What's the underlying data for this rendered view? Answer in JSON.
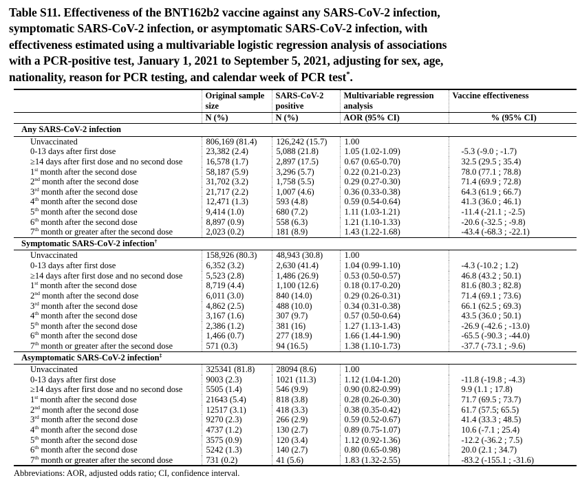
{
  "title": {
    "lines": [
      "Table S11. Effectiveness of the BNT162b2 vaccine against any SARS-CoV-2 infection,",
      "symptomatic SARS-CoV-2 infection, or asymptomatic SARS-CoV-2 infection, with",
      "effectiveness estimated using a multivariable logistic regression analysis of associations",
      "with a PCR-positive test, January 1, 2021 to September 5, 2021, adjusting for sex, age,"
    ],
    "last": {
      "pre": "nationality, reason for PCR testing, and calendar week of PCR test",
      "sup": "*",
      "post": "."
    }
  },
  "table": {
    "columns": [
      {
        "title": "Original sample size",
        "sub": "N (%)"
      },
      {
        "title": "SARS-CoV-2 positive",
        "sub": "N (%)"
      },
      {
        "title": "Multivariable regression analysis",
        "sub": "AOR (95% CI)"
      },
      {
        "title": "Vaccine effectiveness",
        "sub": "% (95% CI)"
      }
    ],
    "sections": [
      {
        "label": {
          "text": "Any SARS-CoV-2 infection",
          "sup": ""
        },
        "rows": [
          {
            "label": {
              "pre": "Unvaccinated",
              "sup": "",
              "post": ""
            },
            "original": "806,169 (81.4)",
            "positive": "126,242 (15.7)",
            "aor": "1.00",
            "ve": ""
          },
          {
            "label": {
              "pre": "0-13 days after first dose",
              "sup": "",
              "post": ""
            },
            "original": "23,382 (2.4)",
            "positive": "5,088 (21.8)",
            "aor": "1.05 (1.02-1.09)",
            "ve": "-5.3 (-9.0 ; -1.7)"
          },
          {
            "label": {
              "pre": "≥14 days after first dose and no second dose",
              "sup": "",
              "post": ""
            },
            "original": "16,578 (1.7)",
            "positive": "2,897 (17.5)",
            "aor": "0.67 (0.65-0.70)",
            "ve": "32.5 (29.5 ; 35.4)"
          },
          {
            "label": {
              "pre": "1",
              "sup": "st",
              "post": " month after the second dose"
            },
            "original": "58,187 (5.9)",
            "positive": "3,296 (5.7)",
            "aor": "0.22 (0.21-0.23)",
            "ve": "78.0 (77.1 ; 78.8)"
          },
          {
            "label": {
              "pre": "2",
              "sup": "nd",
              "post": " month after the second dose"
            },
            "original": "31,702 (3.2)",
            "positive": "1,758 (5.5)",
            "aor": "0.29 (0.27-0.30)",
            "ve": "71.4 (69.9 ; 72.8)"
          },
          {
            "label": {
              "pre": "3",
              "sup": "rd",
              "post": " month after the second dose"
            },
            "original": "21,717 (2.2)",
            "positive": "1,007 (4.6)",
            "aor": "0.36 (0.33-0.38)",
            "ve": "64.3 (61.9 ; 66.7)"
          },
          {
            "label": {
              "pre": "4",
              "sup": "th",
              "post": " month after the second dose"
            },
            "original": "12,471 (1.3)",
            "positive": "593 (4.8)",
            "aor": "0.59 (0.54-0.64)",
            "ve": "41.3 (36.0 ; 46.1)"
          },
          {
            "label": {
              "pre": "5",
              "sup": "th",
              "post": " month after the second dose"
            },
            "original": "9,414 (1.0)",
            "positive": "680 (7.2)",
            "aor": "1.11 (1.03-1.21)",
            "ve": "-11.4 (-21.1 ; -2.5)"
          },
          {
            "label": {
              "pre": "6",
              "sup": "th",
              "post": " month after the second dose"
            },
            "original": "8,897 (0.9)",
            "positive": "558 (6.3)",
            "aor": "1.21 (1.10-1.33)",
            "ve": "-20.6 (-32.5 ; -9.8)"
          },
          {
            "label": {
              "pre": "7",
              "sup": "th",
              "post": " month or greater after the second dose"
            },
            "original": "2,023 (0.2)",
            "positive": "181 (8.9)",
            "aor": "1.43 (1.22-1.68)",
            "ve": "-43.4 (-68.3 ; -22.1)"
          }
        ]
      },
      {
        "label": {
          "text": "Symptomatic SARS-CoV-2 infection",
          "sup": "†"
        },
        "rows": [
          {
            "label": {
              "pre": "Unvaccinated",
              "sup": "",
              "post": ""
            },
            "original": "158,926 (80.3)",
            "positive": "48,943 (30.8)",
            "aor": "1.00",
            "ve": ""
          },
          {
            "label": {
              "pre": "0-13 days after first dose",
              "sup": "",
              "post": ""
            },
            "original": "6,352 (3.2)",
            "positive": "2,630 (41.4)",
            "aor": "1.04 (0.99-1.10)",
            "ve": "-4.3 (-10.2 ; 1.2)"
          },
          {
            "label": {
              "pre": "≥14 days after first dose and no second dose",
              "sup": "",
              "post": ""
            },
            "original": "5,523 (2.8)",
            "positive": "1,486 (26.9)",
            "aor": "0.53 (0.50-0.57)",
            "ve": "46.8 (43.2 ; 50.1)"
          },
          {
            "label": {
              "pre": "1",
              "sup": "st",
              "post": " month after the second dose"
            },
            "original": "8,719 (4.4)",
            "positive": "1,100 (12.6)",
            "aor": "0.18 (0.17-0.20)",
            "ve": "81.6 (80.3 ; 82.8)"
          },
          {
            "label": {
              "pre": "2",
              "sup": "nd",
              "post": " month after the second dose"
            },
            "original": "6,011 (3.0)",
            "positive": "840 (14.0)",
            "aor": "0.29 (0.26-0.31)",
            "ve": "71.4 (69.1 ; 73.6)"
          },
          {
            "label": {
              "pre": "3",
              "sup": "rd",
              "post": " month after the second dose"
            },
            "original": "4,862 (2.5)",
            "positive": "488 (10.0)",
            "aor": "0.34 (0.31-0.38)",
            "ve": "66.1 (62.5 ; 69.3)"
          },
          {
            "label": {
              "pre": "4",
              "sup": "th",
              "post": " month after the second dose"
            },
            "original": "3,167 (1.6)",
            "positive": "307 (9.7)",
            "aor": "0.57 (0.50-0.64)",
            "ve": "43.5 (36.0 ; 50.1)"
          },
          {
            "label": {
              "pre": "5",
              "sup": "th",
              "post": " month after the second dose"
            },
            "original": "2,386 (1.2)",
            "positive": "381 (16)",
            "aor": "1.27 (1.13-1.43)",
            "ve": "-26.9 (-42.6 ; -13.0)"
          },
          {
            "label": {
              "pre": "6",
              "sup": "th",
              "post": " month after the second dose"
            },
            "original": "1,466 (0.7)",
            "positive": "277 (18.9)",
            "aor": "1.66 (1.44-1.90)",
            "ve": "-65.5 (-90.3 ; -44.0)"
          },
          {
            "label": {
              "pre": "7",
              "sup": "th",
              "post": " month or greater after the second dose"
            },
            "original": "571 (0.3)",
            "positive": "94 (16.5)",
            "aor": "1.38 (1.10-1.73)",
            "ve": "-37.7 (-73.1 ; -9.6)"
          }
        ]
      },
      {
        "label": {
          "text": "Asymptomatic SARS-CoV-2 infection",
          "sup": "‡"
        },
        "rows": [
          {
            "label": {
              "pre": "Unvaccinated",
              "sup": "",
              "post": ""
            },
            "original": "325341 (81.8)",
            "positive": "28094 (8.6)",
            "aor": "1.00",
            "ve": ""
          },
          {
            "label": {
              "pre": "0-13 days after first dose",
              "sup": "",
              "post": ""
            },
            "original": "9003 (2.3)",
            "positive": "1021 (11.3)",
            "aor": "1.12 (1.04-1.20)",
            "ve": "-11.8 (-19.8 ; -4.3)"
          },
          {
            "label": {
              "pre": "≥14 days after first dose and no second dose",
              "sup": "",
              "post": ""
            },
            "original": "5505 (1.4)",
            "positive": "546 (9.9)",
            "aor": "0.90 (0.82-0.99)",
            "ve": "9.9 (1.1 ; 17.8)"
          },
          {
            "label": {
              "pre": "1",
              "sup": "st",
              "post": " month after the second dose"
            },
            "original": "21643 (5.4)",
            "positive": "818 (3.8)",
            "aor": "0.28 (0.26-0.30)",
            "ve": "71.7 (69.5 ; 73.7)"
          },
          {
            "label": {
              "pre": "2",
              "sup": "nd",
              "post": " month after the second dose"
            },
            "original": "12517 (3.1)",
            "positive": "418 (3.3)",
            "aor": "0.38 (0.35-0.42)",
            "ve": "61.7 (57.5; 65.5)"
          },
          {
            "label": {
              "pre": "3",
              "sup": "rd",
              "post": " month after the second dose"
            },
            "original": "9270 (2.3)",
            "positive": "266 (2.9)",
            "aor": "0.59 (0.52-0.67)",
            "ve": "41.4 (33.3 ; 48.5)"
          },
          {
            "label": {
              "pre": "4",
              "sup": "th",
              "post": " month after the second dose"
            },
            "original": "4737 (1.2)",
            "positive": "130 (2.7)",
            "aor": "0.89 (0.75-1.07)",
            "ve": "10.6 (-7.1 ; 25.4)"
          },
          {
            "label": {
              "pre": "5",
              "sup": "th",
              "post": " month after the second dose"
            },
            "original": "3575 (0.9)",
            "positive": "120 (3.4)",
            "aor": "1.12 (0.92-1.36)",
            "ve": "-12.2 (-36.2 ; 7.5)"
          },
          {
            "label": {
              "pre": "6",
              "sup": "th",
              "post": " month after the second dose"
            },
            "original": "5242 (1.3)",
            "positive": "140 (2.7)",
            "aor": "0.80 (0.65-0.98)",
            "ve": "20.0 (2.1 ; 34.7)"
          },
          {
            "label": {
              "pre": "7",
              "sup": "th",
              "post": " month or greater after the second dose"
            },
            "original": "731 (0.2)",
            "positive": "41 (5.6)",
            "aor": "1.83 (1.32-2.55)",
            "ve": "-83.2 (-155.1 ; -31.6)"
          }
        ]
      }
    ]
  },
  "footnote": {
    "text": "Abbreviations: AOR, adjusted odds ratio; CI, confidence interval."
  }
}
